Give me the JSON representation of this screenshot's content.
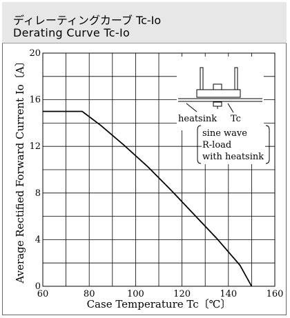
{
  "header": {
    "title_jp": "ディレーティングカーブ Tc-Io",
    "title_en": "Derating Curve Tc-Io"
  },
  "colors": {
    "header_bg": "#e7e7e7",
    "line": "#000000",
    "grid": "#000000"
  },
  "chart_data": {
    "type": "line",
    "xlabel": "Case Temperature Tc〔℃〕",
    "ylabel": "Average Rectified Forward Current Io〔A〕",
    "xlim": [
      60,
      160
    ],
    "ylim": [
      0,
      20
    ],
    "xticks": [
      "60",
      "80",
      "100",
      "120",
      "140",
      "160"
    ],
    "yticks": [
      "0",
      "4",
      "8",
      "12",
      "16",
      "20"
    ],
    "grid": true,
    "series": [
      {
        "x": [
          60,
          77,
          85,
          95,
          105,
          115,
          125,
          135,
          145,
          150
        ],
        "values": [
          15,
          15,
          13.8,
          12.1,
          10.3,
          8.3,
          6.2,
          4.1,
          1.8,
          0
        ]
      }
    ],
    "annotations": {
      "heatsink": "heatsink",
      "tc": "Tc",
      "conditions": [
        "sine wave",
        "R-load",
        "with heatsink"
      ]
    }
  }
}
